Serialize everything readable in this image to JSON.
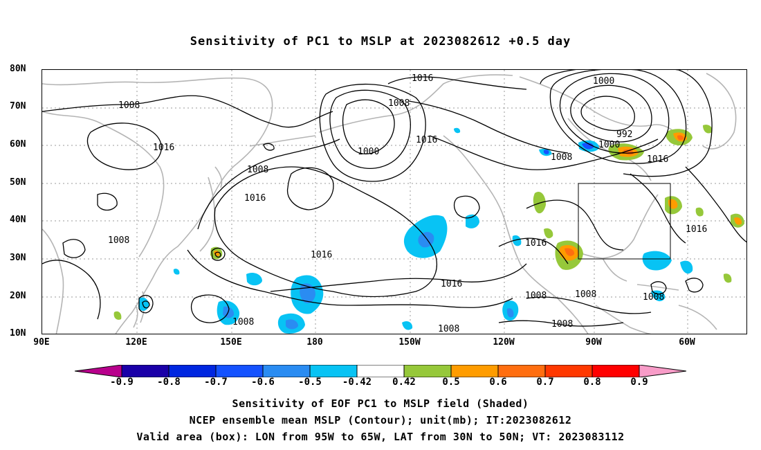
{
  "title": "Sensitivity of PC1 to MSLP at 2023082612 +0.5 day",
  "lat_labels": [
    "80N",
    "70N",
    "60N",
    "50N",
    "40N",
    "30N",
    "20N",
    "10N"
  ],
  "lon_labels": [
    "90E",
    "120E",
    "150E",
    "180",
    "150W",
    "120W",
    "90W",
    "60W"
  ],
  "colorbar": {
    "labels": [
      "-0.9",
      "-0.8",
      "-0.7",
      "-0.6",
      "-0.5",
      "-0.42",
      "0.42",
      "0.5",
      "0.6",
      "0.7",
      "0.8",
      "0.9"
    ],
    "colors": [
      "#b8008c",
      "#1a00a8",
      "#0026e0",
      "#1452ff",
      "#2a8cf2",
      "#08c3f4",
      "#ffffff",
      "#96c83a",
      "#ff9c00",
      "#ff6e10",
      "#ff3800",
      "#ff0000",
      "#f89cc8"
    ]
  },
  "contour_labels": [
    "1016",
    "1000",
    "1008",
    "1008",
    "1016",
    "1000",
    "1016",
    "1008",
    "1016",
    "1008",
    "1016",
    "992",
    "1000",
    "1008",
    "1016",
    "1016",
    "1016",
    "1008",
    "1008",
    "1008",
    "1008",
    "1008",
    "1008",
    "1016"
  ],
  "box": {
    "lon": [
      "95W",
      "65W"
    ],
    "lat": [
      "30N",
      "50N"
    ]
  },
  "captions": [
    "Sensitivity of EOF PC1 to MSLP field (Shaded)",
    "NCEP ensemble mean MSLP (Contour); unit(mb); IT:2023082612",
    "Valid area (box): LON from 95W to 65W, LAT from 30N to 50N; VT: 2023083112"
  ]
}
